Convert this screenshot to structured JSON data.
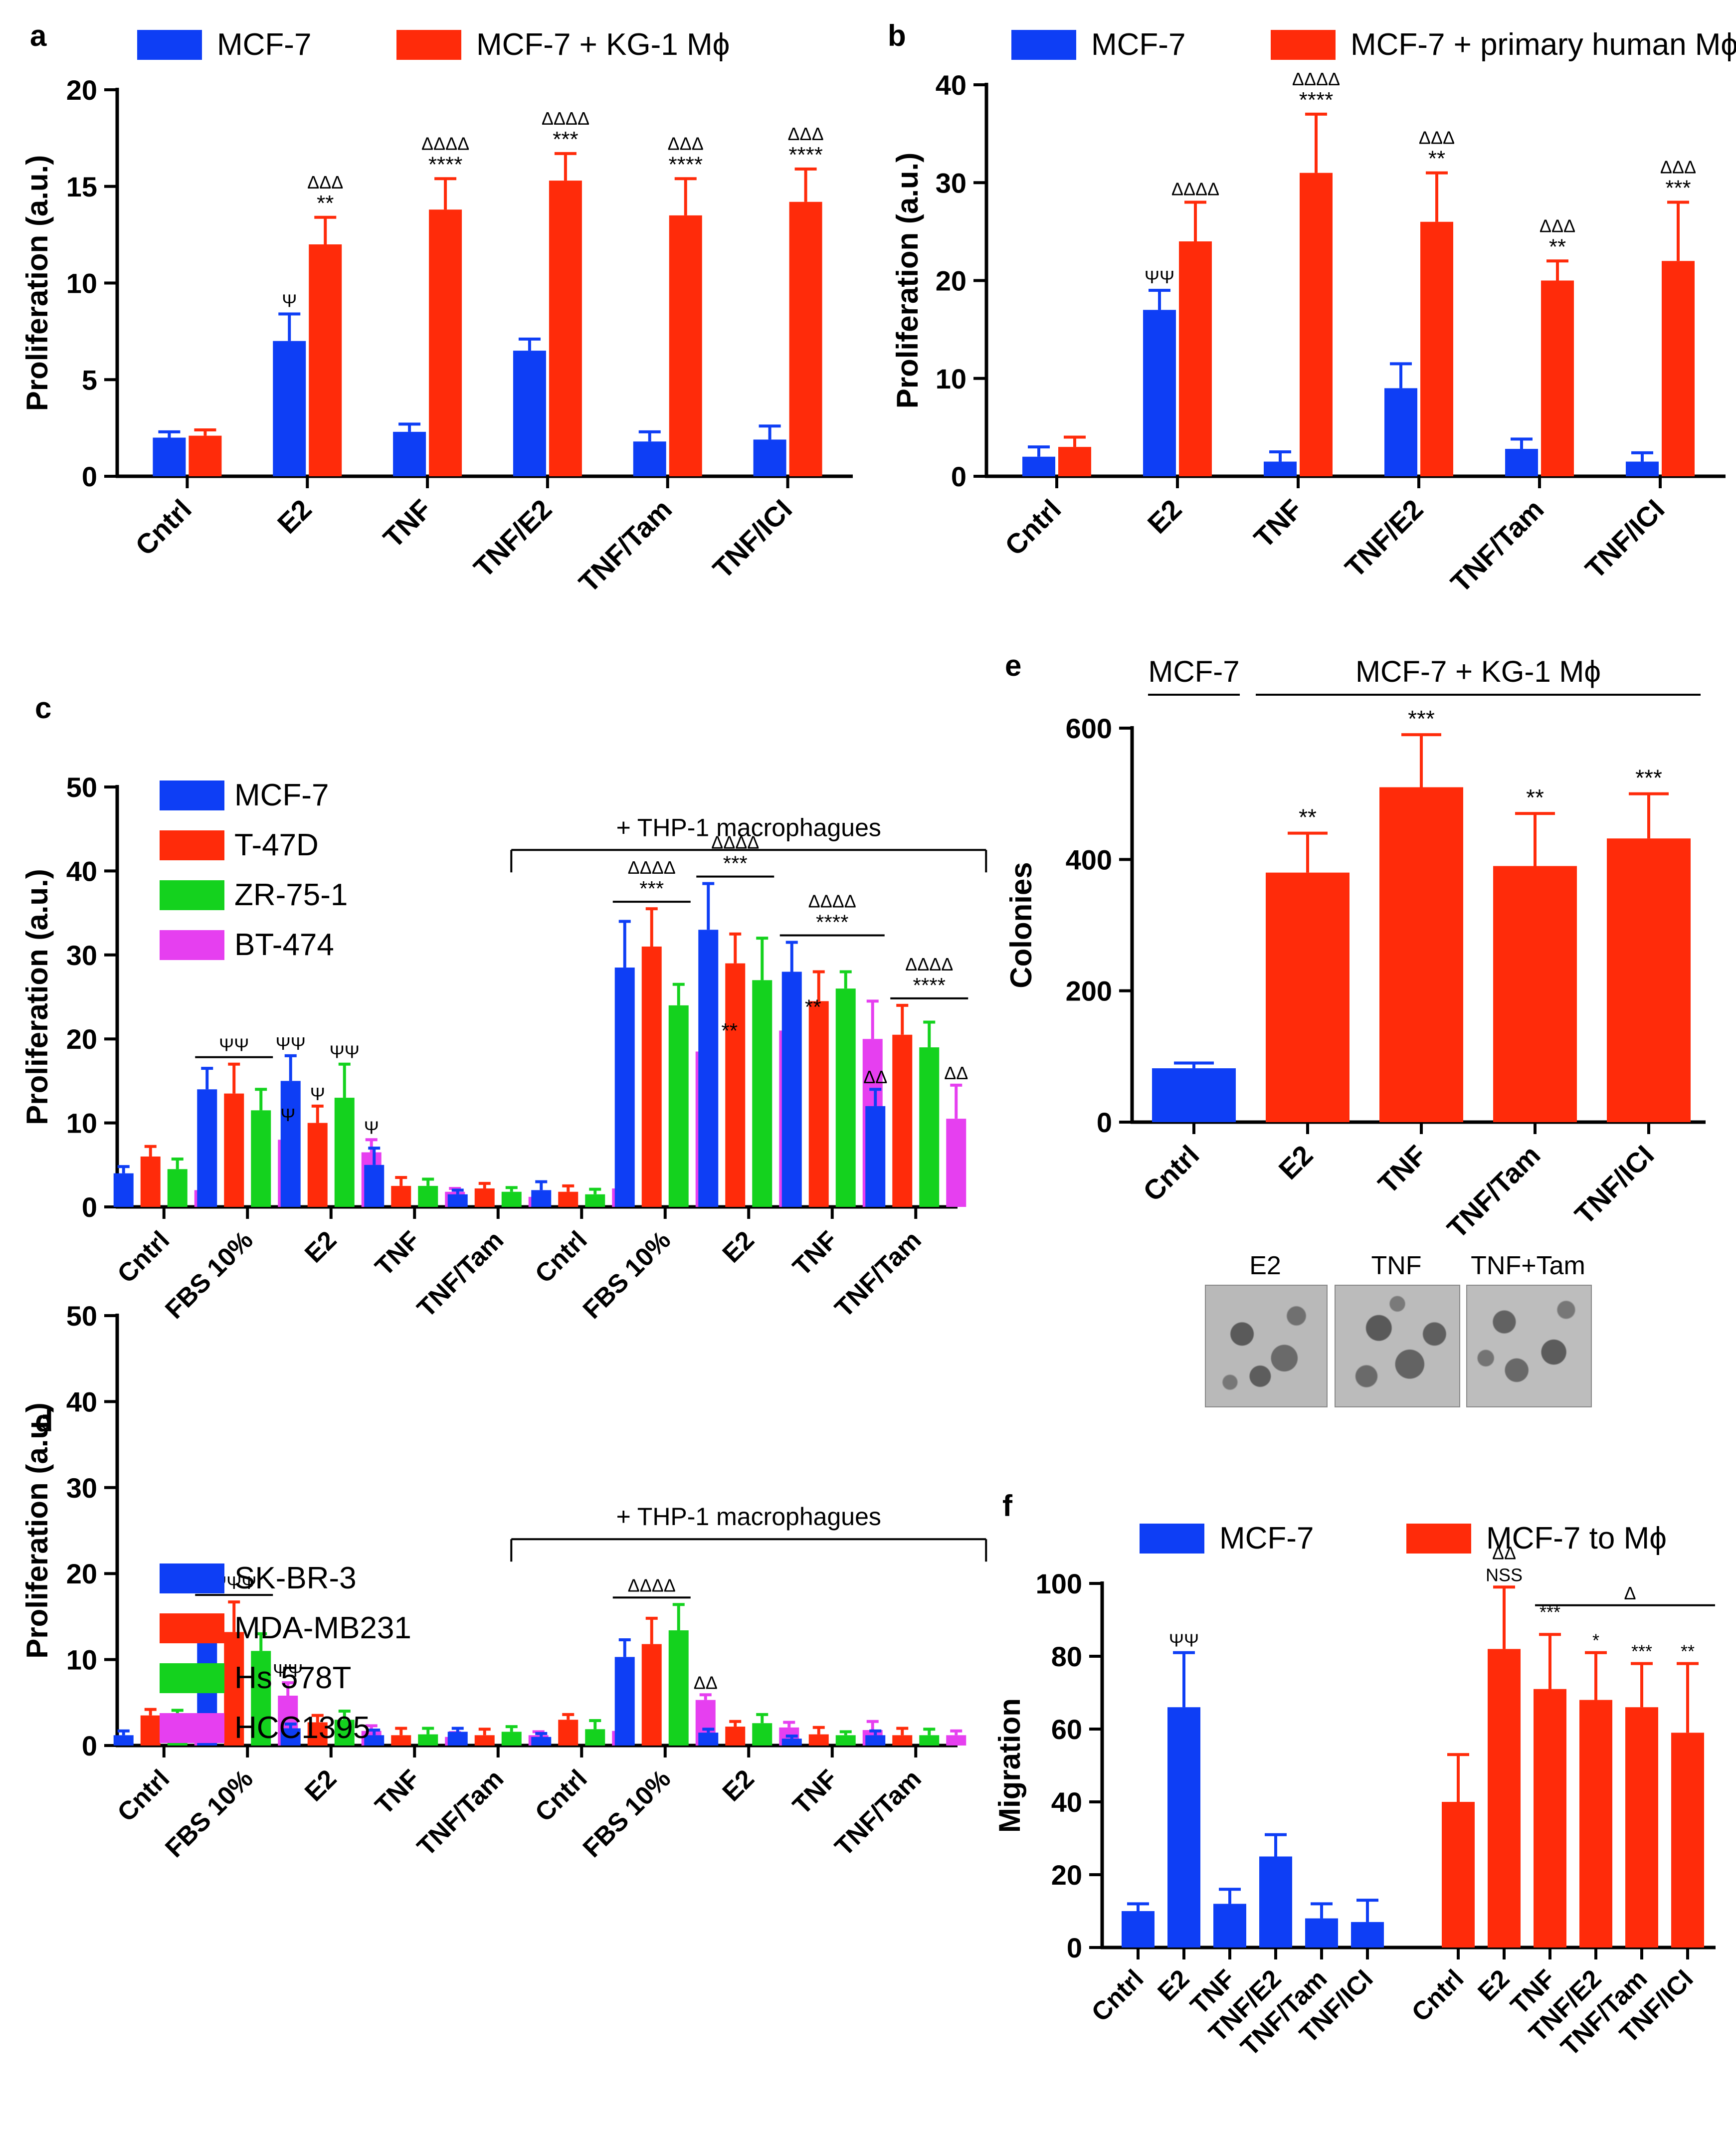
{
  "colors": {
    "blue": "#0e3ef5",
    "red": "#ff2b0a",
    "green": "#14d21e",
    "magenta": "#e63ff0"
  },
  "chart_data": [
    {
      "id": "a",
      "panel_label": "a",
      "type": "bar",
      "ylabel": "Proliferation  (a.u.)",
      "ylim": [
        0,
        20
      ],
      "yticks": [
        0,
        5,
        10,
        15,
        20
      ],
      "categories": [
        "Cntrl",
        "E2",
        "TNF",
        "TNF/E2",
        "TNF/Tam",
        "TNF/ICI"
      ],
      "series": [
        {
          "name": "MCF-7",
          "color": "blue",
          "values": [
            2.0,
            7.0,
            2.3,
            6.5,
            1.8,
            1.9
          ],
          "errors": [
            0.3,
            1.4,
            0.4,
            0.6,
            0.5,
            0.7
          ]
        },
        {
          "name": "MCF-7 + KG-1 Mϕ",
          "color": "red",
          "values": [
            2.1,
            12.0,
            13.8,
            15.3,
            13.5,
            14.2
          ],
          "errors": [
            0.3,
            1.4,
            1.6,
            1.4,
            1.9,
            1.7
          ]
        }
      ],
      "annotations": [
        {
          "cat": 1,
          "series": 0,
          "lines": [
            "Ψ"
          ]
        },
        {
          "cat": 1,
          "series": 1,
          "lines": [
            "ΔΔΔ",
            "**"
          ]
        },
        {
          "cat": 2,
          "series": 1,
          "lines": [
            "ΔΔΔΔ",
            "****"
          ]
        },
        {
          "cat": 3,
          "series": 1,
          "lines": [
            "ΔΔΔΔ",
            "***"
          ]
        },
        {
          "cat": 4,
          "series": 1,
          "lines": [
            "ΔΔΔ",
            "****"
          ]
        },
        {
          "cat": 5,
          "series": 1,
          "lines": [
            "ΔΔΔ",
            "****"
          ]
        }
      ]
    },
    {
      "id": "b",
      "panel_label": "b",
      "type": "bar",
      "ylabel": "Proliferation  (a.u.)",
      "ylim": [
        0,
        40
      ],
      "yticks": [
        0,
        10,
        20,
        30,
        40
      ],
      "categories": [
        "Cntrl",
        "E2",
        "TNF",
        "TNF/E2",
        "TNF/Tam",
        "TNF/ICI"
      ],
      "series": [
        {
          "name": "MCF-7",
          "color": "blue",
          "values": [
            2.0,
            17.0,
            1.5,
            9.0,
            2.8,
            1.5
          ],
          "errors": [
            1.0,
            2.0,
            1.0,
            2.5,
            1.0,
            0.9
          ]
        },
        {
          "name": "MCF-7 + primary human Mϕ",
          "color": "red",
          "values": [
            3.0,
            24.0,
            31.0,
            26.0,
            20.0,
            22.0
          ],
          "errors": [
            1.0,
            4.0,
            6.0,
            5.0,
            2.0,
            6.0
          ]
        }
      ],
      "annotations": [
        {
          "cat": 1,
          "series": 0,
          "lines": [
            "ΨΨ"
          ]
        },
        {
          "cat": 1,
          "series": 1,
          "lines": [
            "ΔΔΔΔ"
          ]
        },
        {
          "cat": 2,
          "series": 1,
          "lines": [
            "ΔΔΔΔ",
            "****"
          ]
        },
        {
          "cat": 3,
          "series": 1,
          "lines": [
            "ΔΔΔ",
            "**"
          ]
        },
        {
          "cat": 4,
          "series": 1,
          "lines": [
            "ΔΔΔ",
            "**"
          ]
        },
        {
          "cat": 5,
          "series": 1,
          "lines": [
            "ΔΔΔ",
            "***"
          ]
        }
      ]
    },
    {
      "id": "c",
      "panel_label": "c",
      "type": "bar",
      "ylabel": "Proliferation  (a.u.)",
      "ylim": [
        0,
        50
      ],
      "yticks": [
        0,
        10,
        20,
        30,
        40,
        50
      ],
      "categories": [
        "Cntrl",
        "FBS 10%",
        "E2",
        "TNF",
        "TNF/Tam",
        "Cntrl",
        "FBS 10%",
        "E2",
        "TNF",
        "TNF/Tam"
      ],
      "group_bracket": {
        "label": "+ THP-1 macrophagues",
        "from": 5,
        "to": 9
      },
      "series": [
        {
          "name": "MCF-7",
          "color": "blue",
          "values": [
            4.0,
            14.0,
            15.0,
            5.0,
            1.5,
            2.0,
            28.5,
            33.0,
            28.0,
            12.0
          ],
          "errors": [
            0.8,
            2.5,
            3.0,
            2.0,
            0.5,
            1.0,
            5.5,
            5.5,
            3.5,
            2.0
          ]
        },
        {
          "name": "T-47D",
          "color": "red",
          "values": [
            6.0,
            13.5,
            10.0,
            2.5,
            2.2,
            1.8,
            31.0,
            29.0,
            24.5,
            20.5
          ],
          "errors": [
            1.2,
            3.5,
            2.0,
            1.0,
            0.6,
            0.7,
            4.5,
            3.5,
            3.5,
            3.5
          ]
        },
        {
          "name": "ZR-75-1",
          "color": "green",
          "values": [
            4.5,
            11.5,
            13.0,
            2.5,
            1.8,
            1.5,
            24.0,
            27.0,
            26.0,
            19.0
          ],
          "errors": [
            1.2,
            2.5,
            4.0,
            0.8,
            0.5,
            0.6,
            2.5,
            5.0,
            2.0,
            3.0
          ]
        },
        {
          "name": "BT-474",
          "color": "magenta",
          "values": [
            2.0,
            8.0,
            6.5,
            1.8,
            1.2,
            2.2,
            18.5,
            21.0,
            20.0,
            10.5
          ],
          "errors": [
            0.8,
            1.5,
            1.5,
            0.4,
            0.5,
            0.6,
            3.5,
            4.5,
            4.5,
            4.0
          ]
        }
      ],
      "annotations": [
        {
          "cat": 1,
          "over": [
            0,
            2
          ],
          "lines": [
            "ΨΨ"
          ]
        },
        {
          "cat": 1,
          "series": 3,
          "lines": [
            "Ψ"
          ]
        },
        {
          "cat": 2,
          "series": 0,
          "lines": [
            "ΨΨ"
          ]
        },
        {
          "cat": 2,
          "series": 1,
          "lines": [
            "Ψ"
          ]
        },
        {
          "cat": 2,
          "series": 2,
          "lines": [
            "ΨΨ"
          ]
        },
        {
          "cat": 2,
          "series": 3,
          "lines": [
            "Ψ"
          ]
        },
        {
          "cat": 6,
          "over": [
            0,
            2
          ],
          "lines": [
            "ΔΔΔΔ",
            "***"
          ]
        },
        {
          "cat": 6,
          "series": 3,
          "side": true,
          "lines": [
            "**"
          ]
        },
        {
          "cat": 7,
          "over": [
            0,
            2
          ],
          "lines": [
            "ΔΔΔΔ",
            "***"
          ]
        },
        {
          "cat": 7,
          "series": 3,
          "side": true,
          "lines": [
            "**"
          ]
        },
        {
          "cat": 8,
          "over": [
            0,
            3
          ],
          "lines": [
            "ΔΔΔΔ",
            "****"
          ]
        },
        {
          "cat": 9,
          "over": [
            1,
            3
          ],
          "lines": [
            "ΔΔΔΔ",
            "****"
          ]
        },
        {
          "cat": 9,
          "series": 0,
          "lines": [
            "ΔΔ"
          ]
        },
        {
          "cat": 9,
          "series": 3,
          "lines": [
            "ΔΔ"
          ]
        }
      ]
    },
    {
      "id": "d",
      "panel_label": "d",
      "type": "bar",
      "ylabel": "Proliferation  (a.u.)",
      "ylim": [
        0,
        50
      ],
      "yticks": [
        0,
        10,
        20,
        30,
        40,
        50
      ],
      "categories": [
        "Cntrl",
        "FBS 10%",
        "E2",
        "TNF",
        "TNF/Tam",
        "Cntrl",
        "FBS 10%",
        "E2",
        "TNF",
        "TNF/Tam"
      ],
      "group_bracket": {
        "label": "+ THP-1 macrophagues",
        "from": 5,
        "to": 9
      },
      "series": [
        {
          "name": "SK-BR-3",
          "color": "blue",
          "values": [
            1.2,
            12.3,
            2.0,
            1.2,
            1.6,
            1.0,
            10.3,
            1.5,
            0.8,
            1.2
          ],
          "errors": [
            0.5,
            2.5,
            0.5,
            0.6,
            0.4,
            0.4,
            2.0,
            0.4,
            0.3,
            0.5
          ]
        },
        {
          "name": "MDA-MB231",
          "color": "red",
          "values": [
            3.5,
            13.2,
            2.7,
            1.2,
            1.2,
            3.0,
            11.8,
            2.2,
            1.3,
            1.2
          ],
          "errors": [
            0.7,
            3.5,
            0.8,
            0.8,
            0.7,
            0.6,
            3.0,
            0.6,
            0.8,
            0.8
          ]
        },
        {
          "name": "Hs 578T",
          "color": "green",
          "values": [
            2.9,
            11.0,
            3.0,
            1.3,
            1.6,
            1.9,
            13.4,
            2.6,
            1.2,
            1.2
          ],
          "errors": [
            1.2,
            2.0,
            1.0,
            0.7,
            0.6,
            1.0,
            3.0,
            1.0,
            0.4,
            0.7
          ]
        },
        {
          "name": "HCC1395",
          "color": "magenta",
          "values": [
            1.3,
            5.8,
            1.7,
            1.0,
            1.2,
            1.7,
            5.3,
            2.1,
            1.8,
            1.2
          ],
          "errors": [
            0.4,
            1.5,
            0.6,
            0.5,
            0.4,
            0.6,
            0.6,
            0.6,
            1.0,
            0.5
          ]
        }
      ],
      "annotations": [
        {
          "cat": 1,
          "over": [
            0,
            2
          ],
          "lines": [
            "ΨΨΨ"
          ]
        },
        {
          "cat": 1,
          "series": 3,
          "lines": [
            "ΨΨ"
          ]
        },
        {
          "cat": 6,
          "over": [
            0,
            2
          ],
          "lines": [
            "ΔΔΔΔ"
          ]
        },
        {
          "cat": 6,
          "series": 3,
          "lines": [
            "ΔΔ"
          ]
        }
      ]
    },
    {
      "id": "e",
      "panel_label": "e",
      "type": "bar",
      "ylabel": "Colonies",
      "ylim": [
        0,
        600
      ],
      "yticks": [
        0,
        200,
        400,
        600
      ],
      "categories": [
        "Cntrl",
        "E2",
        "TNF",
        "TNF/Tam",
        "TNF/ICI"
      ],
      "top_groups": [
        {
          "label": "MCF-7",
          "from": 0,
          "to": 0
        },
        {
          "label": "MCF-7 + KG-1 Mϕ",
          "from": 1,
          "to": 4
        }
      ],
      "series": [
        {
          "name": "Colonies",
          "colors": [
            "blue",
            "red",
            "red",
            "red",
            "red"
          ],
          "values": [
            82,
            380,
            510,
            390,
            432
          ],
          "errors": [
            8,
            60,
            80,
            80,
            68
          ]
        }
      ],
      "annotations": [
        {
          "cat": 1,
          "series": 0,
          "lines": [
            "**"
          ]
        },
        {
          "cat": 2,
          "series": 0,
          "lines": [
            "***"
          ]
        },
        {
          "cat": 3,
          "series": 0,
          "lines": [
            "**"
          ]
        },
        {
          "cat": 4,
          "series": 0,
          "lines": [
            "***"
          ]
        }
      ],
      "micrograph_labels": [
        "E2",
        "TNF",
        "TNF+Tam"
      ]
    },
    {
      "id": "f",
      "panel_label": "f",
      "type": "bar",
      "ylabel": "Migration",
      "ylim": [
        0,
        100
      ],
      "yticks": [
        0,
        20,
        40,
        60,
        80,
        100
      ],
      "categories": [
        "Cntrl",
        "E2",
        "TNF",
        "TNF/E2",
        "TNF/Tam",
        "TNF/ICI",
        "Cntrl",
        "E2",
        "TNF",
        "TNF/E2",
        "TNF/Tam",
        "TNF/ICI"
      ],
      "legend": [
        {
          "name": "MCF-7",
          "color": "blue"
        },
        {
          "name": "MCF-7 to Mϕ",
          "color": "red"
        }
      ],
      "series": [
        {
          "name": "Migration",
          "colors": [
            "blue",
            "blue",
            "blue",
            "blue",
            "blue",
            "blue",
            "red",
            "red",
            "red",
            "red",
            "red",
            "red"
          ],
          "values": [
            10,
            66,
            12,
            25,
            8,
            7,
            40,
            82,
            71,
            68,
            66,
            59
          ],
          "errors": [
            2,
            15,
            4,
            6,
            4,
            6,
            13,
            17,
            15,
            13,
            12,
            19
          ]
        }
      ],
      "sig_line": {
        "from": 8,
        "to": 11,
        "label": "Δ"
      },
      "annotations": [
        {
          "cat": 1,
          "series": 0,
          "lines": [
            "ΨΨ"
          ]
        },
        {
          "cat": 7,
          "series": 0,
          "lines": [
            "ΔΔ",
            "NSS"
          ]
        },
        {
          "cat": 8,
          "series": 0,
          "lines": [
            "***"
          ],
          "at_line": true
        },
        {
          "cat": 9,
          "series": 0,
          "lines": [
            "*"
          ]
        },
        {
          "cat": 10,
          "series": 0,
          "lines": [
            "***"
          ]
        },
        {
          "cat": 11,
          "series": 0,
          "lines": [
            "**"
          ]
        }
      ]
    }
  ]
}
